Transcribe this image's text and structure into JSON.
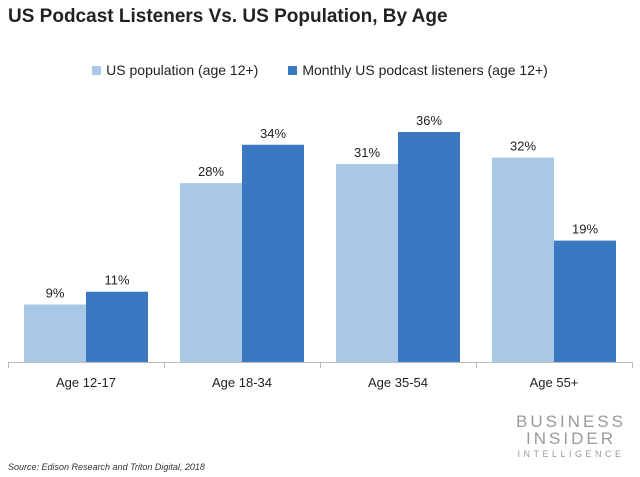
{
  "chart_data": {
    "type": "bar",
    "title": "US Podcast Listeners Vs. US Population, By Age",
    "categories": [
      "Age 12-17",
      "Age 18-34",
      "Age 35-54",
      "Age 55+"
    ],
    "series": [
      {
        "name": "US population (age 12+)",
        "values": [
          9,
          28,
          31,
          32
        ],
        "labels": [
          "9%",
          "28%",
          "31%",
          "32%"
        ],
        "color": "#a9c8e6"
      },
      {
        "name": "Monthly US podcast listeners (age 12+)",
        "values": [
          11,
          34,
          36,
          19
        ],
        "labels": [
          "11%",
          "34%",
          "36%",
          "19%"
        ],
        "color": "#3a78c2"
      }
    ],
    "unit": "%",
    "ylim": [
      0,
      36
    ],
    "grid": false,
    "legend": "top",
    "xlabel": "",
    "ylabel": ""
  },
  "source": "Source: Edison Research and Triton Digital, 2018",
  "logo": {
    "line1": "BUSINESS",
    "line2": "INSIDER",
    "line3": "INTELLIGENCE"
  }
}
